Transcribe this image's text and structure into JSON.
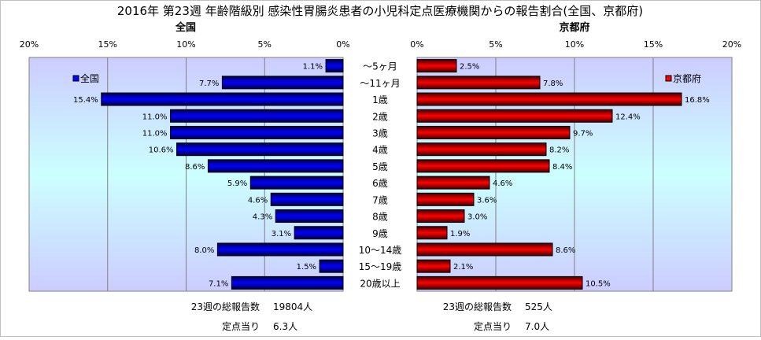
{
  "title": "2016年 第23週 年齢階級別 感染性胃腸炎患者の小児科定点医療機関からの報告割合(全国、京都府)",
  "colors": {
    "national": "#0000ff",
    "kyoto": "#ff0000",
    "plot_bg_edge": "#ccccff",
    "plot_bg_center": "#ccffff"
  },
  "chart_data": [
    {
      "type": "bar",
      "orientation": "horizontal",
      "direction": "right-to-left",
      "title": "全国",
      "legend": "全国",
      "legend_placement": "top-left",
      "xlim": [
        0,
        20
      ],
      "x_ticks": [
        "0%",
        "5%",
        "10%",
        "15%",
        "20%"
      ],
      "grid": true,
      "categories": [
        "～5ヶ月",
        "～11ヶ月",
        "1歳",
        "2歳",
        "3歳",
        "4歳",
        "5歳",
        "6歳",
        "7歳",
        "8歳",
        "9歳",
        "10～14歳",
        "15～19歳",
        "20歳以上"
      ],
      "values": [
        1.1,
        7.7,
        15.4,
        11.0,
        11.0,
        10.6,
        8.6,
        5.9,
        4.6,
        4.3,
        3.1,
        8.0,
        1.5,
        7.1
      ],
      "labels": [
        "1.1%",
        "7.7%",
        "15.4%",
        "11.0%",
        "11.0%",
        "10.6%",
        "8.6%",
        "5.9%",
        "4.6%",
        "4.3%",
        "3.1%",
        "8.0%",
        "1.5%",
        "7.1%"
      ],
      "footer": {
        "total_label": "23週の総報告数",
        "total_value": "19804人",
        "per_label": "定点当り",
        "per_value": "6.3人"
      }
    },
    {
      "type": "bar",
      "orientation": "horizontal",
      "direction": "left-to-right",
      "title": "京都府",
      "legend": "京都府",
      "legend_placement": "top-right",
      "xlim": [
        0,
        20
      ],
      "x_ticks": [
        "0%",
        "5%",
        "10%",
        "15%",
        "20%"
      ],
      "grid": true,
      "categories": [
        "～5ヶ月",
        "～11ヶ月",
        "1歳",
        "2歳",
        "3歳",
        "4歳",
        "5歳",
        "6歳",
        "7歳",
        "8歳",
        "9歳",
        "10～14歳",
        "15～19歳",
        "20歳以上"
      ],
      "values": [
        2.5,
        7.8,
        16.8,
        12.4,
        9.7,
        8.2,
        8.4,
        4.6,
        3.6,
        3.0,
        1.9,
        8.6,
        2.1,
        10.5
      ],
      "labels": [
        "2.5%",
        "7.8%",
        "16.8%",
        "12.4%",
        "9.7%",
        "8.2%",
        "8.4%",
        "4.6%",
        "3.6%",
        "3.0%",
        "1.9%",
        "8.6%",
        "2.1%",
        "10.5%"
      ],
      "footer": {
        "total_label": "23週の総報告数",
        "total_value": "525人",
        "per_label": "定点当り",
        "per_value": "7.0人"
      }
    }
  ]
}
